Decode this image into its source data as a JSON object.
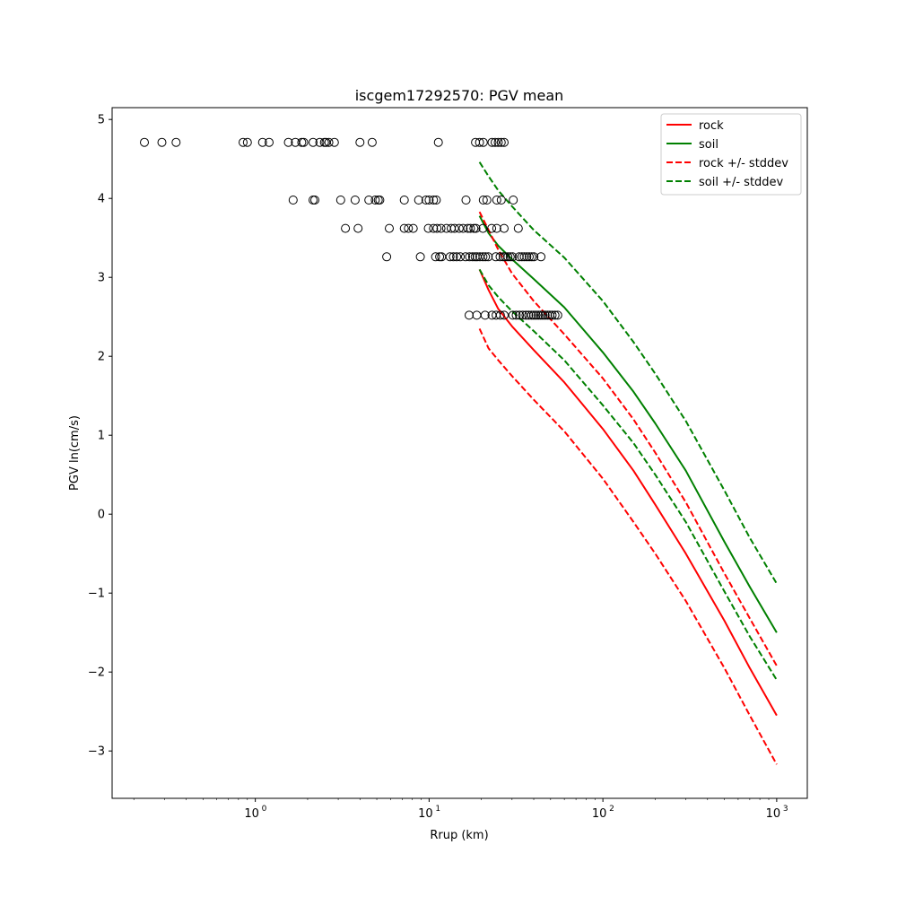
{
  "chart_data": {
    "type": "scatter",
    "title": "iscgem17292570: PGV mean",
    "xlabel": "Rrup (km)",
    "ylabel": "PGV ln(cm/s)",
    "xscale": "log",
    "xlim": [
      0.15,
      1500
    ],
    "ylim": [
      -3.6,
      5.15
    ],
    "xticks": [
      {
        "value": 1,
        "label": "10",
        "exp": "0"
      },
      {
        "value": 10,
        "label": "10",
        "exp": "1"
      },
      {
        "value": 100,
        "label": "10",
        "exp": "2"
      },
      {
        "value": 1000,
        "label": "10",
        "exp": "3"
      }
    ],
    "yticks": [
      {
        "value": -3,
        "label": "−3"
      },
      {
        "value": -2,
        "label": "−2"
      },
      {
        "value": -1,
        "label": "−1"
      },
      {
        "value": 0,
        "label": "0"
      },
      {
        "value": 1,
        "label": "1"
      },
      {
        "value": 2,
        "label": "2"
      },
      {
        "value": 3,
        "label": "3"
      },
      {
        "value": 4,
        "label": "4"
      },
      {
        "value": 5,
        "label": "5"
      }
    ],
    "legend_position": "top-right",
    "observations": [
      {
        "y": 4.71,
        "x": [
          0.23,
          0.29,
          0.35,
          0.85,
          0.9,
          1.1,
          1.2,
          1.55,
          1.7,
          1.85,
          1.9,
          2.15,
          2.35,
          2.5,
          2.55,
          2.65,
          2.85,
          4.0,
          4.7,
          11.3,
          18.5,
          19.5,
          20.5,
          23.0,
          24.0,
          25.0,
          26.0,
          27.0
        ]
      },
      {
        "y": 3.98,
        "x": [
          1.65,
          2.15,
          2.2,
          3.1,
          3.75,
          4.5,
          4.9,
          5.1,
          5.2,
          7.2,
          8.7,
          9.6,
          10.0,
          10.6,
          11.0,
          16.3,
          20.5,
          21.5,
          24.5,
          26.0,
          30.5
        ]
      },
      {
        "y": 3.62,
        "x": [
          3.3,
          3.9,
          5.9,
          7.2,
          7.6,
          8.1,
          9.9,
          10.6,
          11.1,
          11.7,
          12.6,
          13.4,
          14.0,
          14.9,
          15.7,
          16.7,
          17.3,
          18.1,
          18.6,
          20.4,
          22.9,
          24.5,
          27.0,
          32.6
        ]
      },
      {
        "y": 3.26,
        "x": [
          5.7,
          8.9,
          10.9,
          11.5,
          11.8,
          13.2,
          13.8,
          14.4,
          15.1,
          16.2,
          17.1,
          17.8,
          18.4,
          18.9,
          19.6,
          20.4,
          21.1,
          21.9,
          24.2,
          25.6,
          26.7,
          27.5,
          28.4,
          29.3,
          30.2,
          33.0,
          34.2,
          35.3,
          36.5,
          37.7,
          38.9,
          40.1,
          44.0
        ]
      },
      {
        "y": 2.52,
        "x": [
          17.0,
          18.8,
          21.0,
          23.0,
          24.3,
          25.7,
          27.0,
          30.3,
          31.7,
          33.1,
          34.6,
          36.1,
          37.4,
          38.8,
          40.0,
          41.2,
          42.5,
          43.8,
          45.1,
          46.5,
          48.0,
          49.5,
          51.0,
          53.0,
          55.0
        ]
      }
    ],
    "series": [
      {
        "name": "rock",
        "color": "#ff0000",
        "dash": false,
        "x": [
          19.5,
          22,
          25,
          30,
          40,
          60,
          100,
          150,
          200,
          300,
          500,
          700,
          1000
        ],
        "y": [
          3.1,
          2.84,
          2.6,
          2.38,
          2.08,
          1.67,
          1.08,
          0.55,
          0.12,
          -0.5,
          -1.35,
          -1.95,
          -2.55
        ]
      },
      {
        "name": "soil",
        "color": "#008000",
        "dash": false,
        "x": [
          19.5,
          22,
          25,
          30,
          40,
          60,
          100,
          150,
          200,
          300,
          500,
          700,
          1000
        ],
        "y": [
          3.78,
          3.56,
          3.4,
          3.23,
          2.98,
          2.62,
          2.05,
          1.55,
          1.15,
          0.55,
          -0.35,
          -0.92,
          -1.5
        ]
      },
      {
        "name": "rock +/- stddev",
        "color": "#ff0000",
        "dash": true,
        "x": [
          19.5,
          22,
          25,
          30,
          40,
          60,
          100,
          150,
          200,
          300,
          500,
          700,
          1000
        ],
        "y": [
          2.35,
          2.1,
          1.95,
          1.75,
          1.45,
          1.05,
          0.45,
          -0.1,
          -0.5,
          -1.1,
          -1.95,
          -2.55,
          -3.17
        ]
      },
      {
        "name": "rock +/- stddev (upper)",
        "color": "#ff0000",
        "dash": true,
        "legend": false,
        "x": [
          19.5,
          22,
          25,
          30,
          40,
          60,
          100,
          150,
          200,
          300,
          500,
          700,
          1000
        ],
        "y": [
          3.83,
          3.6,
          3.35,
          3.05,
          2.7,
          2.28,
          1.72,
          1.2,
          0.78,
          0.15,
          -0.75,
          -1.32,
          -1.92
        ]
      },
      {
        "name": "soil +/- stddev",
        "color": "#008000",
        "dash": true,
        "x": [
          19.5,
          22,
          25,
          30,
          40,
          60,
          100,
          150,
          200,
          300,
          500,
          700,
          1000
        ],
        "y": [
          4.46,
          4.28,
          4.1,
          3.9,
          3.6,
          3.25,
          2.7,
          2.18,
          1.78,
          1.18,
          0.3,
          -0.3,
          -0.88
        ]
      },
      {
        "name": "soil +/- stddev (lower)",
        "color": "#008000",
        "dash": true,
        "legend": false,
        "x": [
          19.5,
          22,
          25,
          30,
          40,
          60,
          100,
          150,
          200,
          300,
          500,
          700,
          1000
        ],
        "y": [
          3.1,
          2.9,
          2.75,
          2.57,
          2.32,
          1.95,
          1.38,
          0.9,
          0.5,
          -0.1,
          -0.98,
          -1.55,
          -2.1
        ]
      }
    ],
    "legend": [
      {
        "label": "rock",
        "color": "#ff0000",
        "dash": false
      },
      {
        "label": "soil",
        "color": "#008000",
        "dash": false
      },
      {
        "label": "rock +/- stddev",
        "color": "#ff0000",
        "dash": true
      },
      {
        "label": "soil +/- stddev",
        "color": "#008000",
        "dash": true
      }
    ]
  }
}
